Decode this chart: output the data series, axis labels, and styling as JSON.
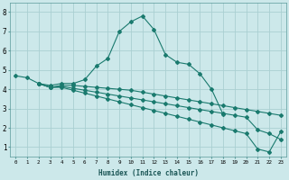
{
  "xlabel": "Humidex (Indice chaleur)",
  "ylabel": "",
  "background_color": "#cce8ea",
  "grid_color": "#aacfd2",
  "line_color": "#1a7a6e",
  "xlim": [
    -0.5,
    23.5
  ],
  "ylim": [
    0.5,
    8.5
  ],
  "xtick_labels": [
    "0",
    "1",
    "2",
    "3",
    "4",
    "5",
    "6",
    "7",
    "8",
    "9",
    "10",
    "11",
    "12",
    "13",
    "14",
    "15",
    "16",
    "17",
    "18",
    "19",
    "20",
    "21",
    "22",
    "23"
  ],
  "yticks": [
    1,
    2,
    3,
    4,
    5,
    6,
    7,
    8
  ],
  "lines": [
    {
      "x": [
        0,
        1,
        2,
        3,
        4,
        5,
        6,
        7,
        8,
        9,
        10,
        11,
        12,
        13,
        14,
        15,
        16,
        17,
        18
      ],
      "y": [
        4.7,
        4.6,
        4.3,
        4.2,
        4.3,
        4.3,
        4.5,
        5.2,
        5.6,
        7.0,
        7.5,
        7.8,
        7.1,
        5.8,
        5.4,
        5.3,
        4.8,
        4.0,
        2.7
      ]
    },
    {
      "x": [
        2,
        3,
        4,
        5,
        6,
        7,
        8,
        9,
        10,
        11,
        12,
        13,
        14,
        15,
        16,
        17,
        18,
        19,
        20,
        21,
        22,
        23
      ],
      "y": [
        4.3,
        4.1,
        4.2,
        4.2,
        4.15,
        4.1,
        4.05,
        4.0,
        3.95,
        3.85,
        3.75,
        3.65,
        3.55,
        3.45,
        3.35,
        3.25,
        3.15,
        3.05,
        2.95,
        2.85,
        2.75,
        2.65
      ]
    },
    {
      "x": [
        2,
        3,
        4,
        5,
        6,
        7,
        8,
        9,
        10,
        11,
        12,
        13,
        14,
        15,
        16,
        17,
        18,
        19,
        20,
        21,
        22,
        23
      ],
      "y": [
        4.3,
        4.1,
        4.15,
        4.05,
        3.95,
        3.85,
        3.75,
        3.65,
        3.55,
        3.45,
        3.35,
        3.25,
        3.15,
        3.05,
        2.95,
        2.85,
        2.75,
        2.65,
        2.55,
        1.9,
        1.7,
        1.4
      ]
    },
    {
      "x": [
        2,
        3,
        4,
        5,
        6,
        7,
        8,
        9,
        10,
        11,
        12,
        13,
        14,
        15,
        16,
        17,
        18,
        19,
        20,
        21,
        22,
        23
      ],
      "y": [
        4.3,
        4.1,
        4.1,
        3.95,
        3.8,
        3.65,
        3.5,
        3.35,
        3.2,
        3.05,
        2.9,
        2.75,
        2.6,
        2.45,
        2.3,
        2.15,
        2.0,
        1.85,
        1.7,
        0.9,
        0.75,
        1.8
      ]
    }
  ]
}
